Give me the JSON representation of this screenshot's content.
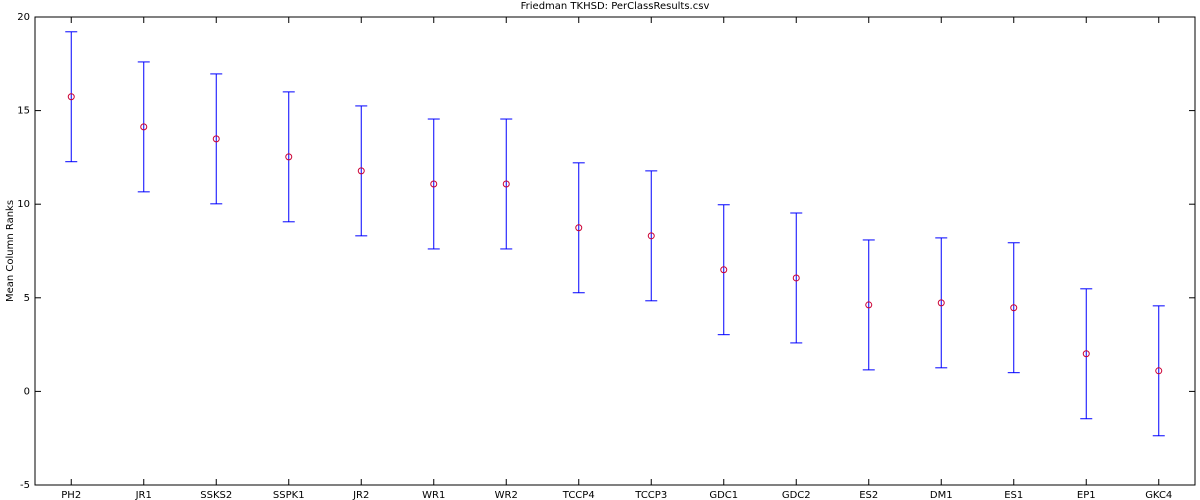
{
  "chart_data": {
    "type": "errorbar",
    "title": "Friedman TKHSD: PerClassResults.csv",
    "y_label": "Mean Column Ranks",
    "categories": [
      "PH2",
      "JR1",
      "SSKS2",
      "SSPK1",
      "JR2",
      "WR1",
      "WR2",
      "TCCP4",
      "TCCP3",
      "GDC1",
      "GDC2",
      "ES2",
      "DM1",
      "ES1",
      "EP1",
      "GKC4"
    ],
    "values": [
      15.74,
      14.13,
      13.49,
      12.53,
      11.78,
      11.08,
      11.08,
      8.74,
      8.31,
      6.5,
      6.06,
      4.62,
      4.73,
      4.47,
      2.01,
      1.1
    ],
    "errors": [
      3.47,
      3.47,
      3.47,
      3.47,
      3.47,
      3.47,
      3.47,
      3.47,
      3.47,
      3.47,
      3.47,
      3.47,
      3.47,
      3.47,
      3.47,
      3.47
    ],
    "bar_color": "#0000ff",
    "marker_color": "#cc0033",
    "ylim": [
      -5,
      20
    ],
    "yticks": [
      -5,
      0,
      5,
      10,
      15,
      20
    ],
    "grid": false
  }
}
